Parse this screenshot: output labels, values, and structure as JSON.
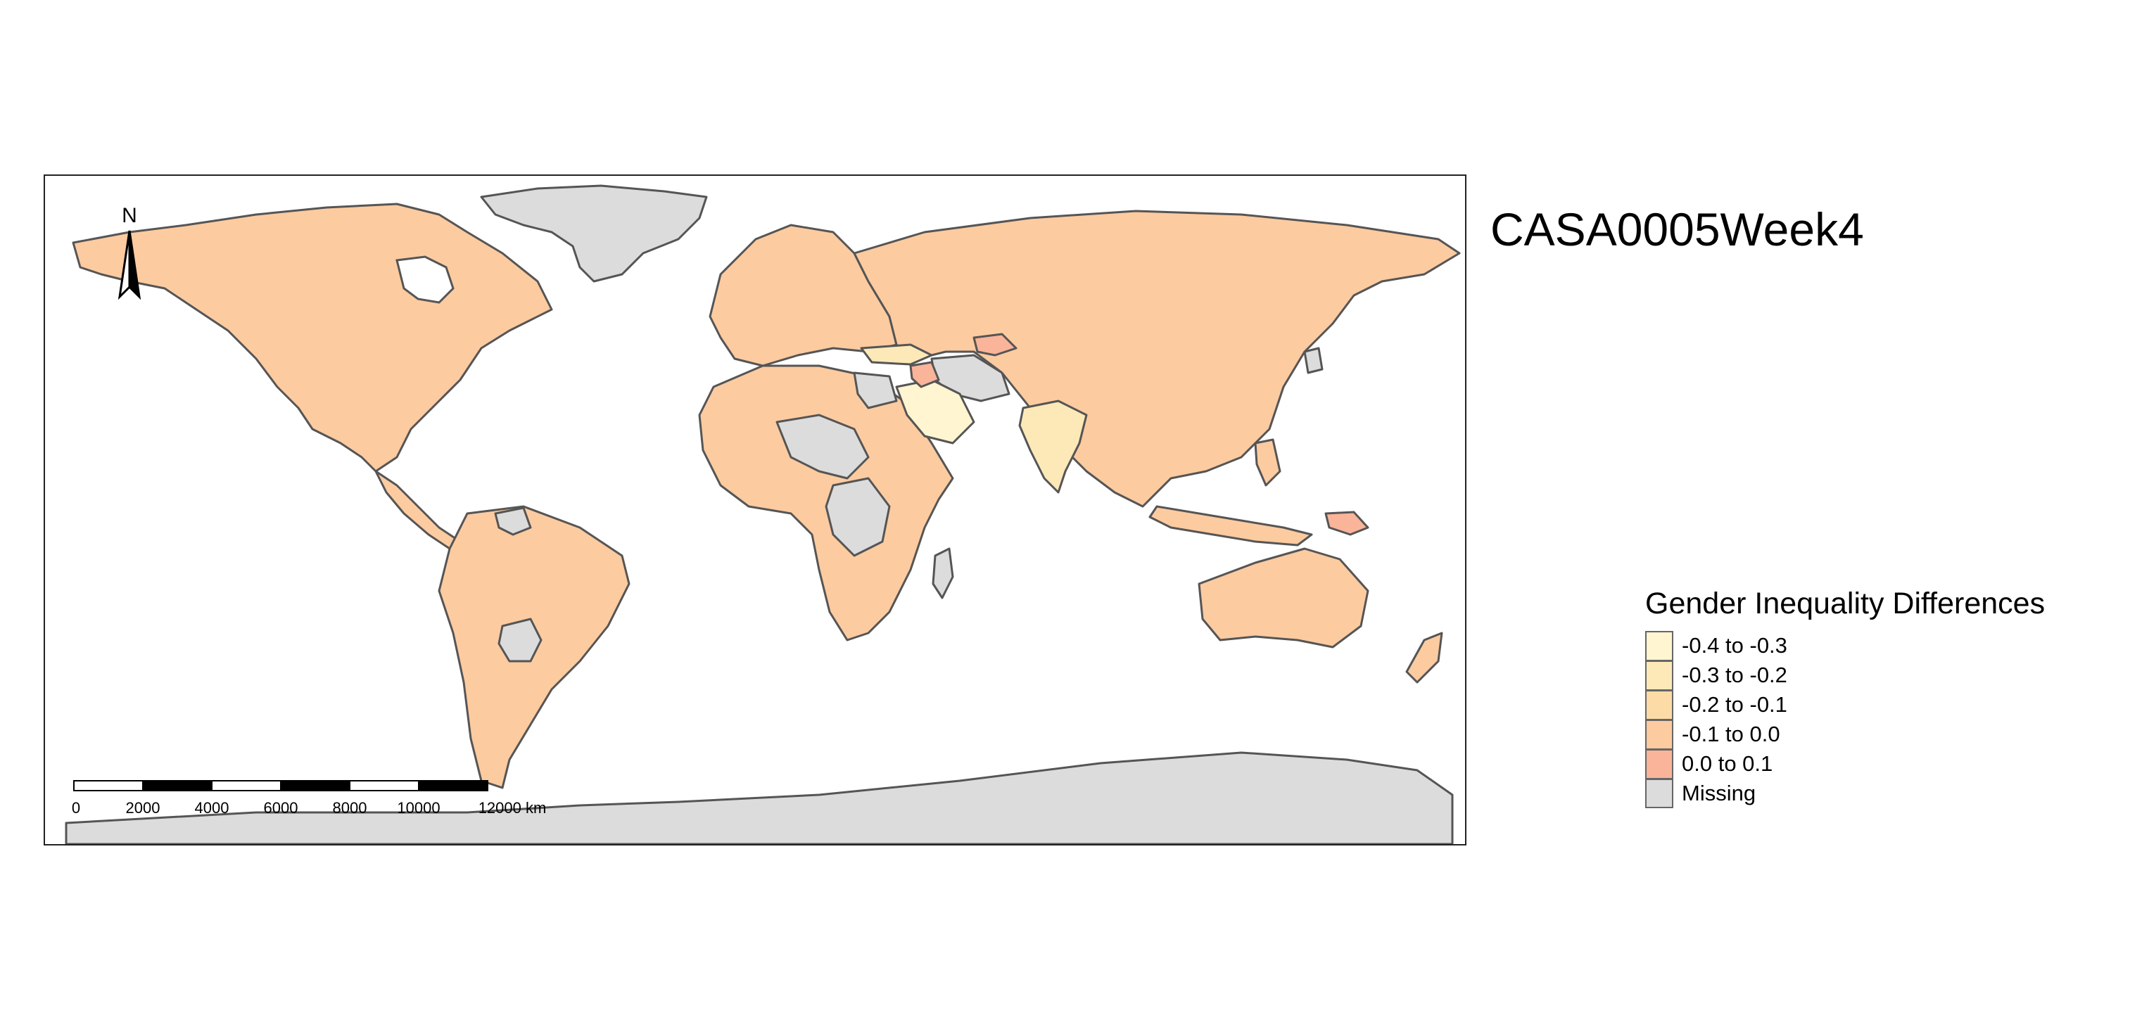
{
  "map": {
    "title": "CASA0005Week4",
    "north_label": "N",
    "scalebar": {
      "ticks": [
        "0",
        "2000",
        "4000",
        "6000",
        "8000",
        "10000",
        "12000 km"
      ]
    },
    "legend": {
      "title": "Gender Inequality Differences",
      "items": [
        {
          "label": "-0.4 to -0.3",
          "color": "#fff5d0"
        },
        {
          "label": "-0.3 to -0.2",
          "color": "#fde9b8"
        },
        {
          "label": "-0.2 to -0.1",
          "color": "#fcdba6"
        },
        {
          "label": "-0.1 to 0.0",
          "color": "#fdcba0"
        },
        {
          "label": "0.0 to 0.1",
          "color": "#f9b49a"
        },
        {
          "label": "Missing",
          "color": "#dcdcdc"
        }
      ]
    },
    "colors": {
      "main_fill": "#fdcba0",
      "missing_fill": "#dcdcdc",
      "light_fill": "#fff5d0",
      "mid_fill": "#fde9b8",
      "positive_fill": "#f9b49a",
      "border": "#555555"
    }
  }
}
